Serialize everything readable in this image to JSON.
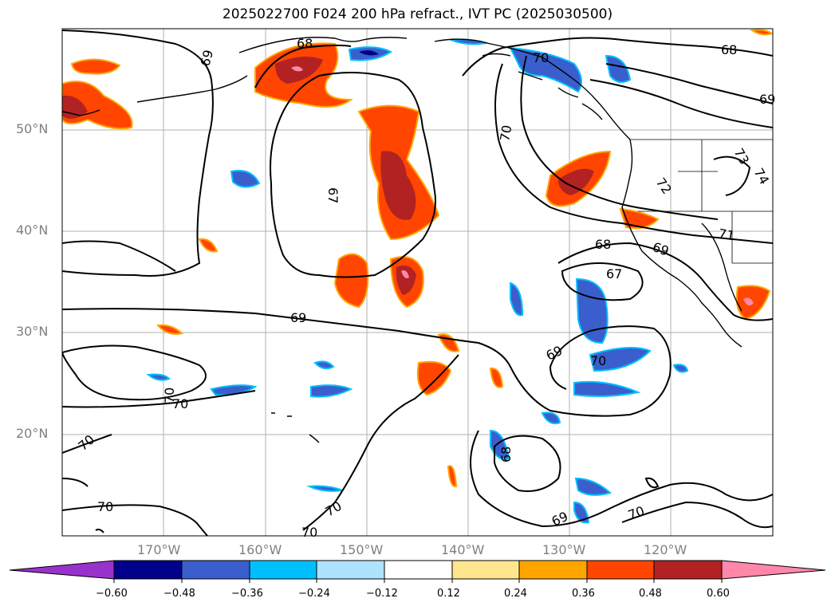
{
  "title": "2025022700 F024 200 hPa refract., IVT PC (2025030500)",
  "lat_labels": [
    "50°N",
    "40°N",
    "30°N",
    "20°N"
  ],
  "lon_labels": [
    "170°W",
    "160°W",
    "150°W",
    "140°W",
    "130°W",
    "120°W"
  ],
  "colorbar": {
    "ticks": [
      "−0.60",
      "−0.48",
      "−0.36",
      "−0.24",
      "−0.12",
      "0.12",
      "0.24",
      "0.36",
      "0.48",
      "0.60"
    ],
    "colors": [
      "#9932CC",
      "#00008B",
      "#3A5FCD",
      "#00BFFF",
      "#ADE3FF",
      "#FFFFFF",
      "#FFE68C",
      "#FFA500",
      "#FF4500",
      "#B22222",
      "#FF88AA"
    ]
  },
  "contour_labels": [
    "68",
    "69",
    "68",
    "70",
    "69",
    "67",
    "70",
    "72",
    "74",
    "73",
    "71",
    "68",
    "69",
    "67",
    "69",
    "69",
    "70",
    "70",
    "70",
    "70",
    "70",
    "70",
    "70",
    "68",
    "69",
    "70"
  ]
}
